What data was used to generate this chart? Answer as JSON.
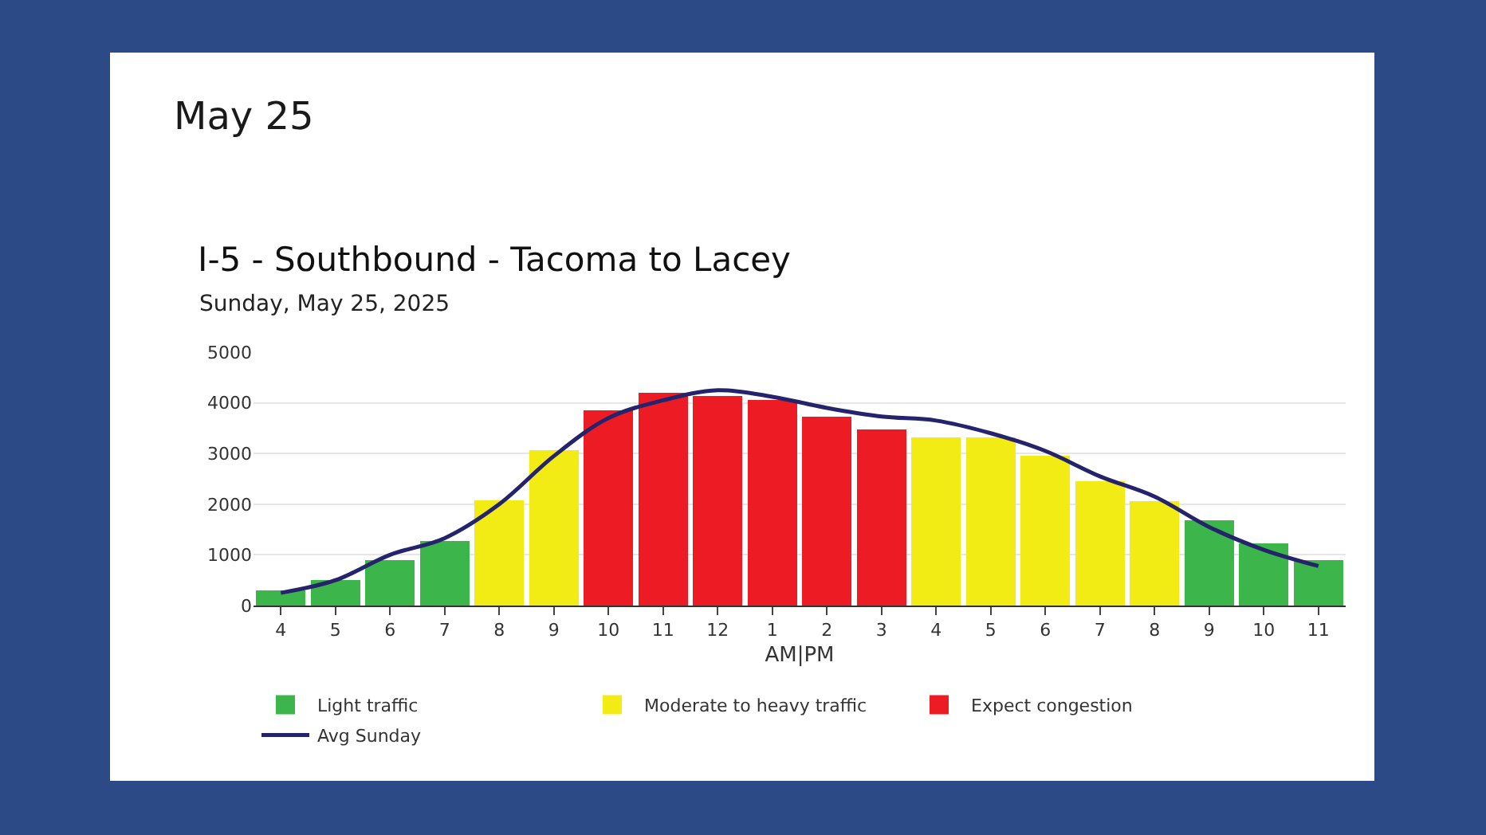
{
  "chart_data": {
    "type": "bar",
    "title": "I-5 - Southbound - Tacoma to Lacey",
    "subtitle": "Sunday, May 25, 2025",
    "annotations": [
      "May 25"
    ],
    "xlabel": "AM|PM",
    "categories": [
      "4",
      "5",
      "6",
      "7",
      "8",
      "9",
      "10",
      "11",
      "12",
      "1",
      "2",
      "3",
      "4",
      "5",
      "6",
      "7",
      "8",
      "9",
      "10",
      "11"
    ],
    "series": [
      {
        "name": "Light traffic",
        "color": "#3cb54a",
        "values": [
          300,
          500,
          900,
          1270,
          null,
          null,
          null,
          null,
          null,
          null,
          null,
          null,
          null,
          null,
          null,
          null,
          null,
          1680,
          1230,
          900
        ]
      },
      {
        "name": "Moderate to heavy traffic",
        "color": "#f2eb14",
        "values": [
          null,
          null,
          null,
          null,
          2080,
          3060,
          null,
          null,
          null,
          null,
          null,
          null,
          3310,
          3310,
          2950,
          2450,
          2060,
          null,
          null,
          null
        ]
      },
      {
        "name": "Expect congestion",
        "color": "#ed1c24",
        "values": [
          null,
          null,
          null,
          null,
          null,
          null,
          3850,
          4200,
          4130,
          4050,
          3730,
          3480,
          null,
          null,
          null,
          null,
          null,
          null,
          null,
          null
        ]
      },
      {
        "name": "Avg Sunday",
        "type": "line",
        "color": "#25236b",
        "values": [
          250,
          500,
          1000,
          1330,
          2000,
          2950,
          3700,
          4050,
          4250,
          4120,
          3900,
          3730,
          3650,
          3400,
          3050,
          2550,
          2150,
          1550,
          1100,
          780
        ]
      }
    ],
    "stacked": true,
    "ylim": [
      0,
      5000
    ],
    "yticks": [
      0,
      1000,
      2000,
      3000,
      4000,
      5000
    ],
    "grid": "y",
    "legend": "bottom"
  }
}
